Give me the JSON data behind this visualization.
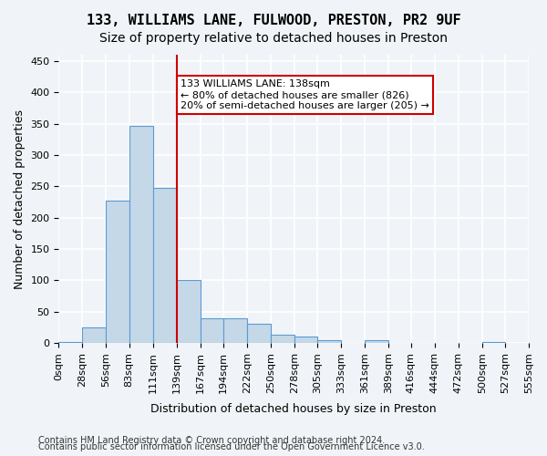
{
  "title1": "133, WILLIAMS LANE, FULWOOD, PRESTON, PR2 9UF",
  "title2": "Size of property relative to detached houses in Preston",
  "xlabel": "Distribution of detached houses by size in Preston",
  "ylabel": "Number of detached properties",
  "footnote1": "Contains HM Land Registry data © Crown copyright and database right 2024.",
  "footnote2": "Contains public sector information licensed under the Open Government Licence v3.0.",
  "bar_values": [
    2,
    25,
    227,
    347,
    247,
    100,
    40,
    40,
    30,
    13,
    10,
    5,
    0,
    4,
    0,
    0,
    0,
    0,
    2
  ],
  "bin_edges": [
    0,
    28,
    56,
    83,
    111,
    139,
    167,
    194,
    222,
    250,
    278,
    305,
    333,
    361,
    389,
    416,
    444,
    472,
    500,
    527
  ],
  "bar_color": "#c5d8e8",
  "bar_edge_color": "#5b9bd5",
  "property_line_x": 139,
  "property_line_color": "#cc0000",
  "annotation_text": "133 WILLIAMS LANE: 138sqm\n← 80% of detached houses are smaller (826)\n20% of semi-detached houses are larger (205) →",
  "annotation_box_color": "#ffffff",
  "annotation_box_edge_color": "#cc0000",
  "ylim": [
    0,
    460
  ],
  "yticks": [
    0,
    50,
    100,
    150,
    200,
    250,
    300,
    350,
    400,
    450
  ],
  "xtick_labels": [
    "0sqm",
    "28sqm",
    "56sqm",
    "83sqm",
    "111sqm",
    "139sqm",
    "167sqm",
    "194sqm",
    "222sqm",
    "250sqm",
    "278sqm",
    "305sqm",
    "333sqm",
    "361sqm",
    "389sqm",
    "416sqm",
    "444sqm",
    "472sqm",
    "500sqm",
    "527sqm",
    "555sqm"
  ],
  "background_color": "#f0f4f8",
  "grid_color": "#ffffff",
  "title1_fontsize": 11,
  "title2_fontsize": 10,
  "axis_label_fontsize": 9,
  "tick_fontsize": 8,
  "footnote_fontsize": 7
}
